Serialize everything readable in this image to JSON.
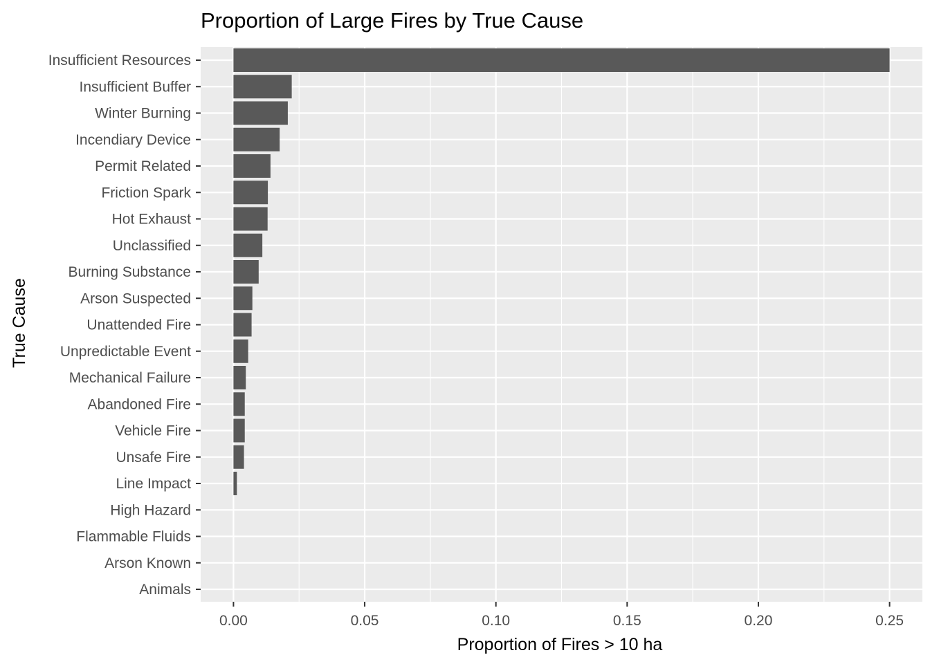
{
  "chart_data": {
    "type": "bar",
    "orientation": "horizontal",
    "title": "Proportion of Large Fires by True Cause",
    "xlabel": "Proportion of Fires > 10 ha",
    "ylabel": "True Cause",
    "xlim": [
      -0.0125,
      0.2625
    ],
    "x_ticks": [
      "0.00",
      "0.05",
      "0.10",
      "0.15",
      "0.20",
      "0.25"
    ],
    "x_tick_values": [
      0,
      0.05,
      0.1,
      0.15,
      0.2,
      0.25
    ],
    "grid": true,
    "legend": "none",
    "bar_color": "#595959",
    "panel_color": "#ebebeb",
    "categories": [
      "Insufficient Resources",
      "Insufficient Buffer",
      "Winter Burning",
      "Incendiary Device",
      "Permit Related",
      "Friction Spark",
      "Hot Exhaust",
      "Unclassified",
      "Burning Substance",
      "Arson Suspected",
      "Unattended Fire",
      "Unpredictable Event",
      "Mechanical Failure",
      "Abandoned Fire",
      "Vehicle Fire",
      "Unsafe Fire",
      "Line Impact",
      "High Hazard",
      "Flammable Fluids",
      "Arson Known",
      "Animals"
    ],
    "values": [
      0.25,
      0.0222,
      0.0207,
      0.0176,
      0.0141,
      0.0131,
      0.013,
      0.011,
      0.0096,
      0.0072,
      0.0069,
      0.0056,
      0.0047,
      0.0043,
      0.0043,
      0.004,
      0.0013,
      0,
      0,
      0,
      0
    ]
  }
}
